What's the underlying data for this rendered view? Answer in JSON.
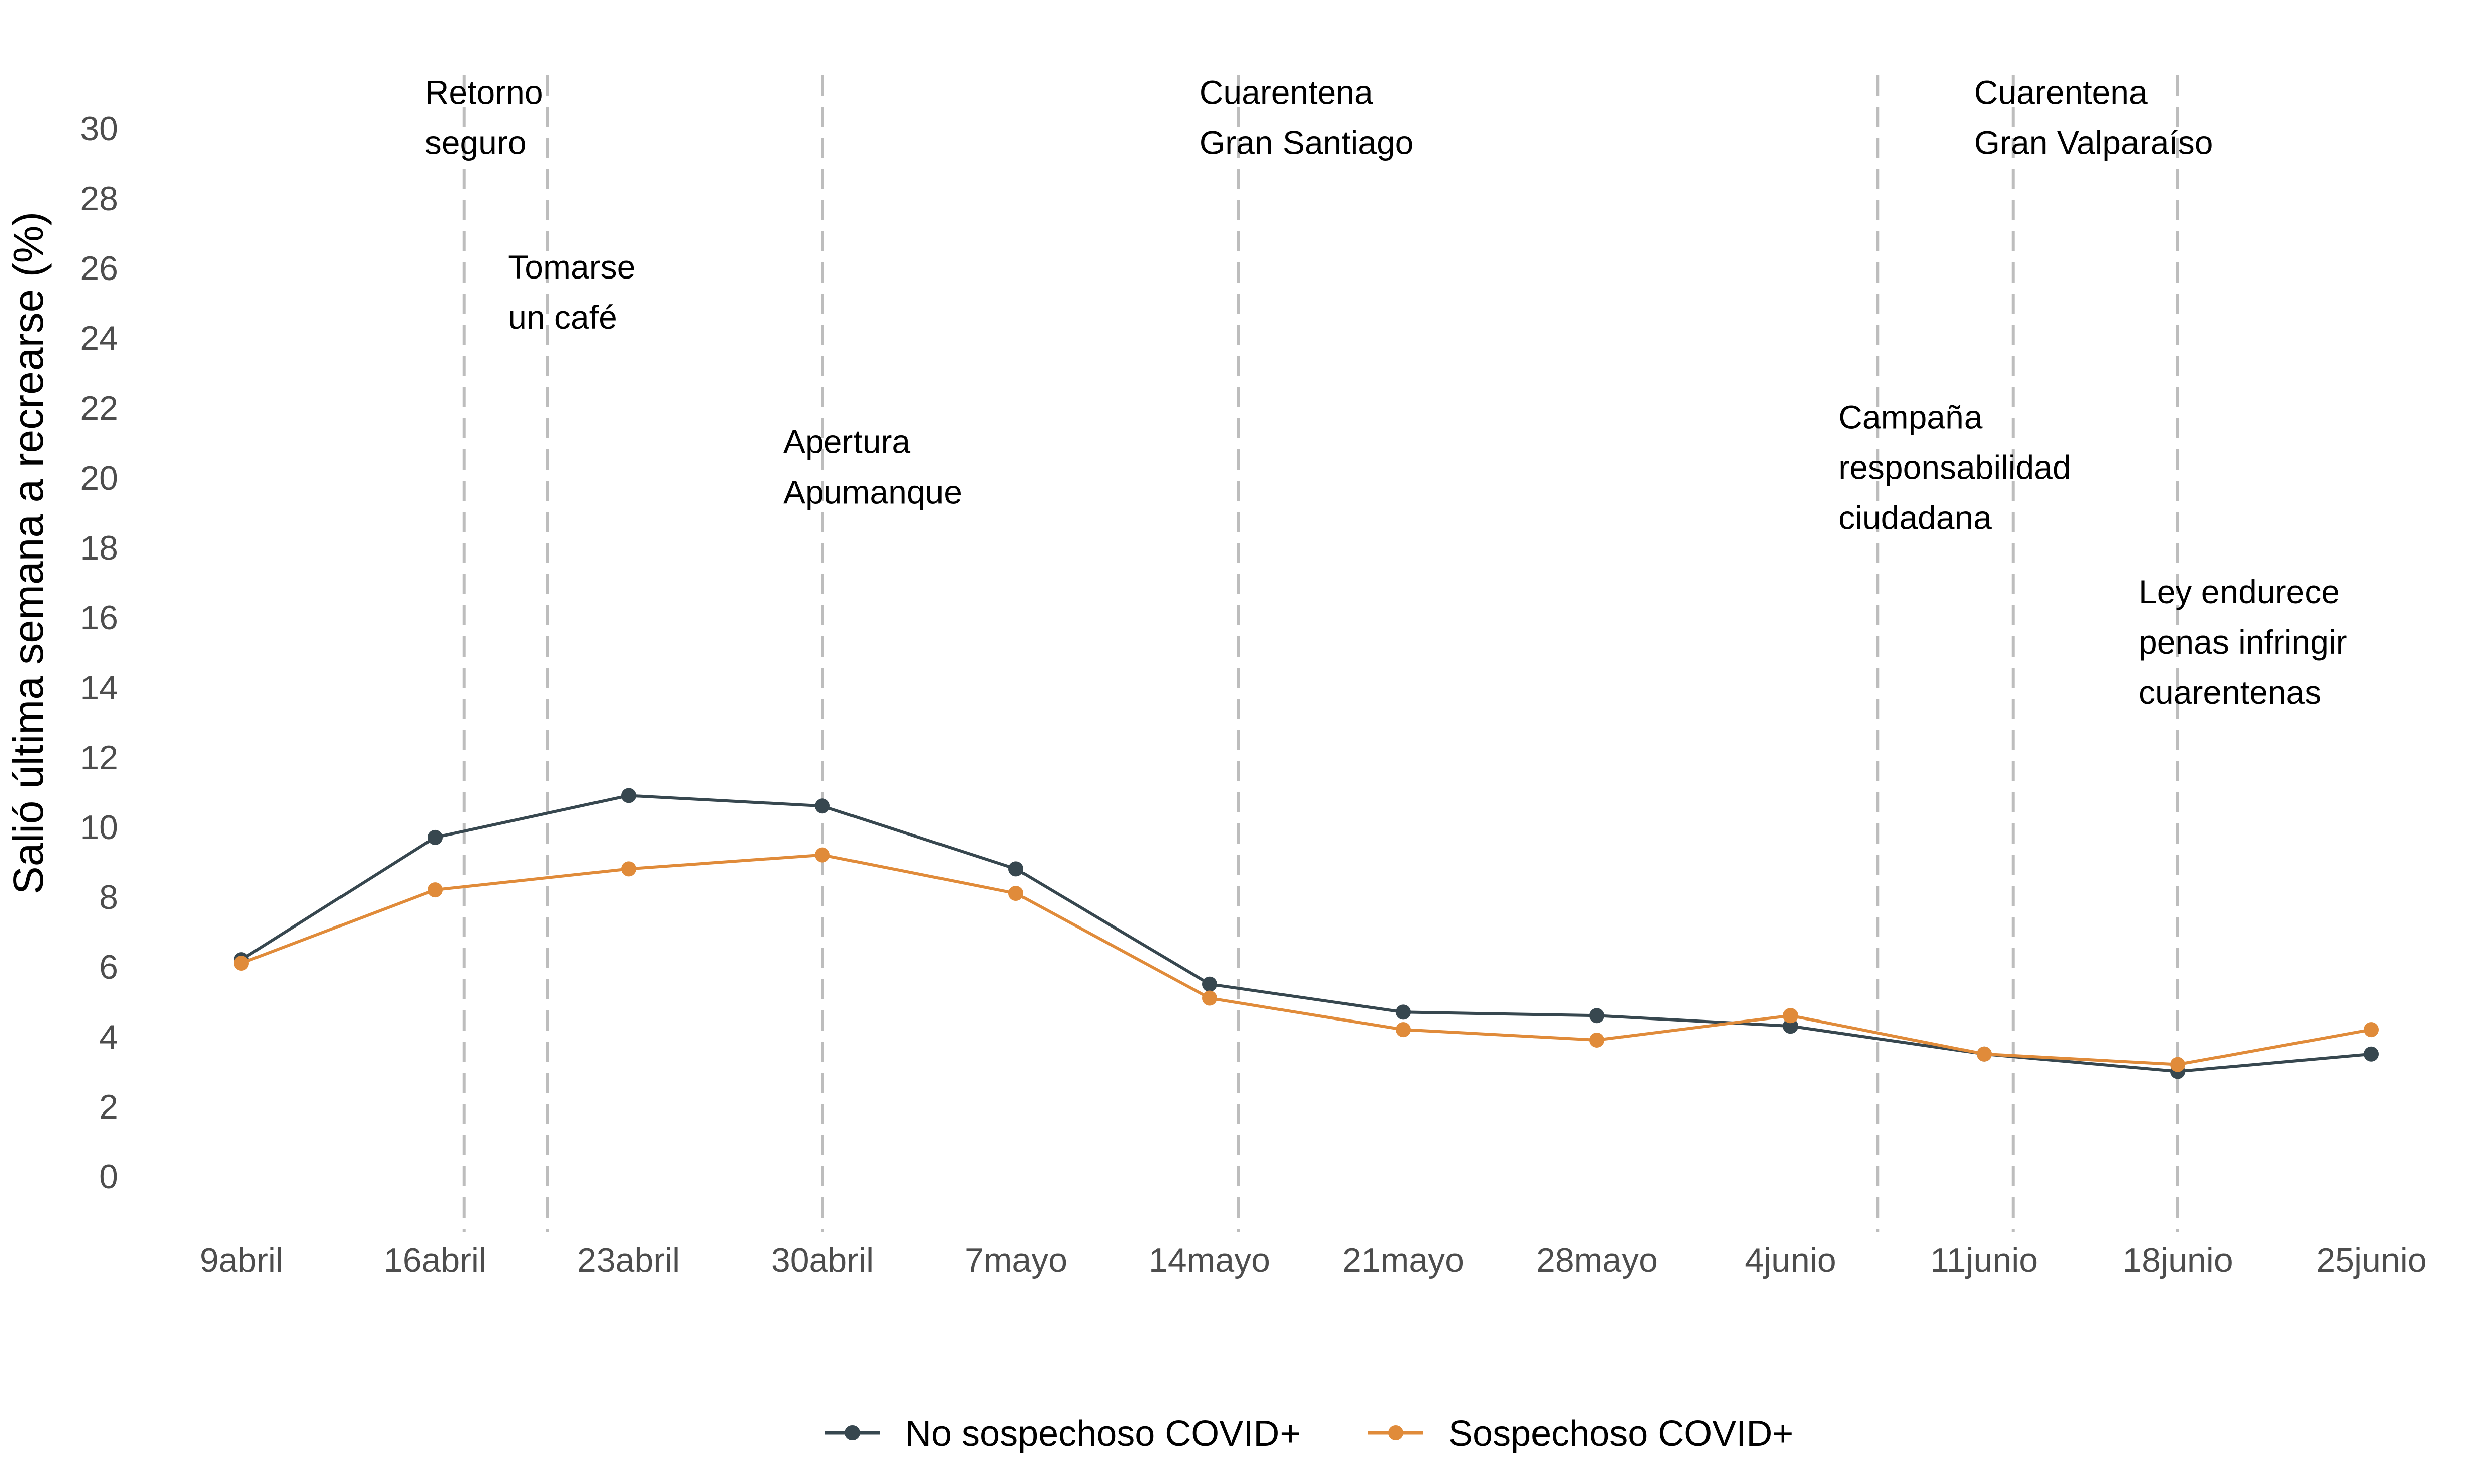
{
  "chart_data": {
    "type": "line",
    "ylabel": "Salió última semana a recrearse (%)",
    "xlabel": "",
    "ylim": [
      0,
      30
    ],
    "yticks": [
      0,
      2,
      4,
      6,
      8,
      10,
      12,
      14,
      16,
      18,
      20,
      22,
      24,
      26,
      28,
      30
    ],
    "categories": [
      "9abril",
      "16abril",
      "23abril",
      "30abril",
      "7mayo",
      "14mayo",
      "21mayo",
      "28mayo",
      "4junio",
      "11junio",
      "18junio",
      "25junio"
    ],
    "grid": false,
    "legend_position": "bottom",
    "series": [
      {
        "name": "No sospechoso COVID+",
        "color": "#37474f",
        "values": [
          6.2,
          9.7,
          10.9,
          10.6,
          8.8,
          5.5,
          4.7,
          4.6,
          4.3,
          3.5,
          3.0,
          3.5
        ]
      },
      {
        "name": "Sospechoso COVID+",
        "color": "#e08b3a",
        "values": [
          6.1,
          8.2,
          8.8,
          9.2,
          8.1,
          5.1,
          4.2,
          3.9,
          4.6,
          3.5,
          3.2,
          4.2
        ]
      }
    ],
    "events": [
      {
        "x": 1.15,
        "lines": [
          "Retorno",
          "seguro"
        ],
        "label_y": 30.7
      },
      {
        "x": 1.58,
        "lines": [
          "Tomarse",
          "un café"
        ],
        "label_y": 25.7
      },
      {
        "x": 3.0,
        "lines": [
          "Apertura",
          "Apumanque"
        ],
        "label_y": 20.7
      },
      {
        "x": 5.15,
        "lines": [
          "Cuarentena",
          "Gran Santiago"
        ],
        "label_y": 30.7
      },
      {
        "x": 8.45,
        "lines": [
          "Campaña",
          "responsabilidad",
          "ciudadana"
        ],
        "label_y": 21.4
      },
      {
        "x": 9.15,
        "lines": [
          "Cuarentena",
          "Gran Valparaíso"
        ],
        "label_y": 30.7
      },
      {
        "x": 10.0,
        "lines": [
          "Ley endurece",
          "penas infringir",
          "cuarentenas"
        ],
        "label_y": 16.4
      }
    ]
  }
}
